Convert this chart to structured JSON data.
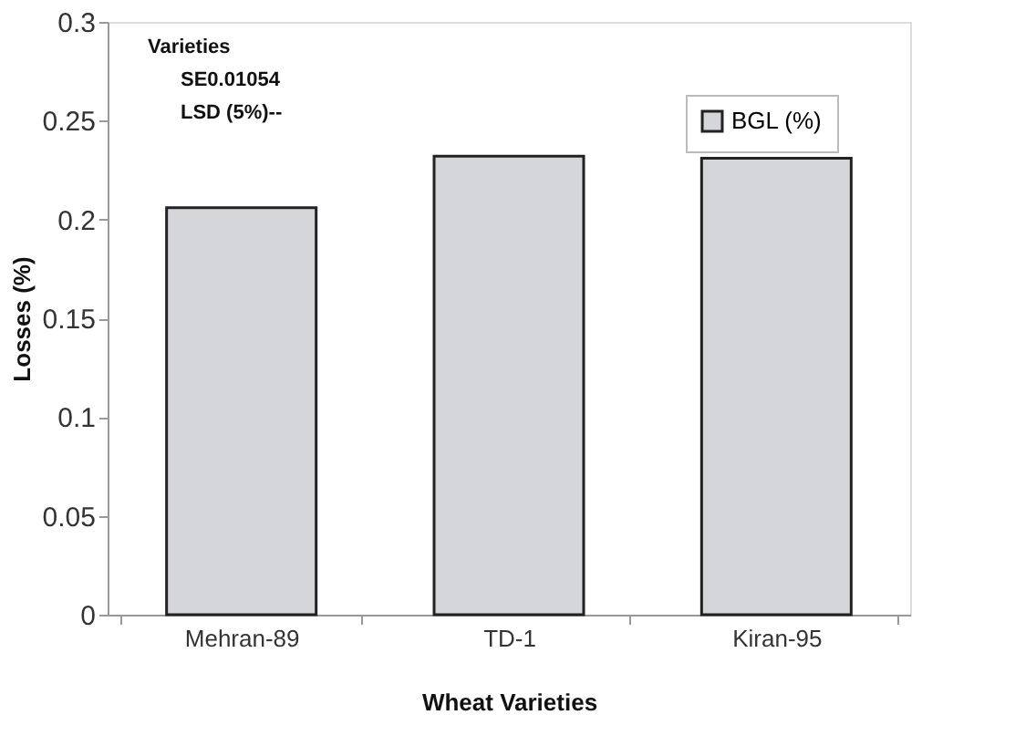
{
  "chart_data": {
    "type": "bar",
    "xlabel": "Wheat Varieties",
    "ylabel": "Losses (%)",
    "categories": [
      "Mehran-89",
      "TD-1",
      "Kiran-95"
    ],
    "series": [
      {
        "name": "BGL (%)",
        "color": "#d4d6da",
        "values": [
          0.206,
          0.232,
          0.231
        ]
      }
    ],
    "ylim": [
      0,
      0.3
    ],
    "yticks": [
      0,
      0.05,
      0.1,
      0.15,
      0.2,
      0.25,
      0.3
    ],
    "grid": false,
    "legend": "top right",
    "annotations": [
      "Varieties",
      "SE0.01054",
      "LSD (5%)--"
    ]
  }
}
